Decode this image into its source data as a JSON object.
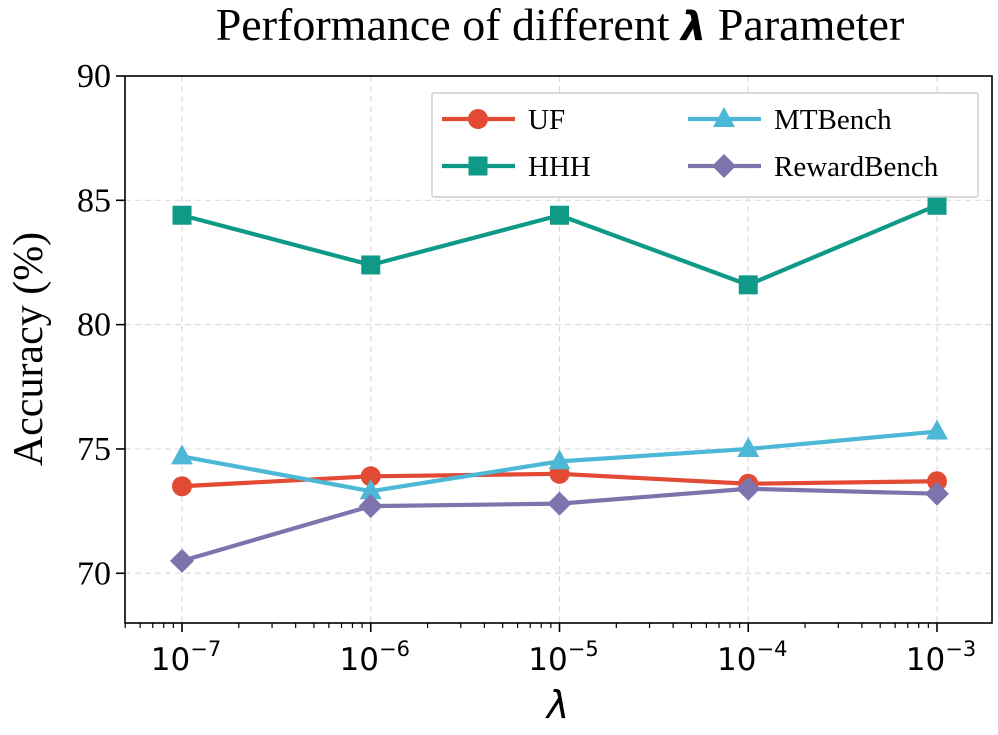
{
  "chart_data": {
    "type": "line",
    "title": "Performance of different λ Parameter",
    "title_parts": {
      "before": "Performance of different ",
      "symbol": "λ",
      "after": " Parameter"
    },
    "xlabel": "λ",
    "ylabel": "Accuracy (%)",
    "x_scale": "log",
    "x": [
      1e-07,
      1e-06,
      1e-05,
      0.0001,
      0.001
    ],
    "x_tick_labels": [
      {
        "base": "10",
        "exp": "−7"
      },
      {
        "base": "10",
        "exp": "−6"
      },
      {
        "base": "10",
        "exp": "−5"
      },
      {
        "base": "10",
        "exp": "−4"
      },
      {
        "base": "10",
        "exp": "−3"
      }
    ],
    "ylim": [
      68,
      90
    ],
    "y_ticks": [
      70,
      75,
      80,
      85,
      90
    ],
    "grid": true,
    "legend_position": "top-right",
    "series": [
      {
        "name": "UF",
        "color": "#e34a33",
        "marker": "circle",
        "values": [
          73.5,
          73.9,
          74.0,
          73.6,
          73.7
        ]
      },
      {
        "name": "HHH",
        "color": "#0f9a87",
        "marker": "square",
        "values": [
          84.4,
          82.4,
          84.4,
          81.6,
          84.8
        ]
      },
      {
        "name": "MTBench",
        "color": "#4db8d6",
        "marker": "triangle",
        "values": [
          74.7,
          73.3,
          74.5,
          75.0,
          75.7
        ]
      },
      {
        "name": "RewardBench",
        "color": "#7e74ad",
        "marker": "diamond",
        "values": [
          70.5,
          72.7,
          72.8,
          73.4,
          73.2
        ]
      }
    ]
  }
}
